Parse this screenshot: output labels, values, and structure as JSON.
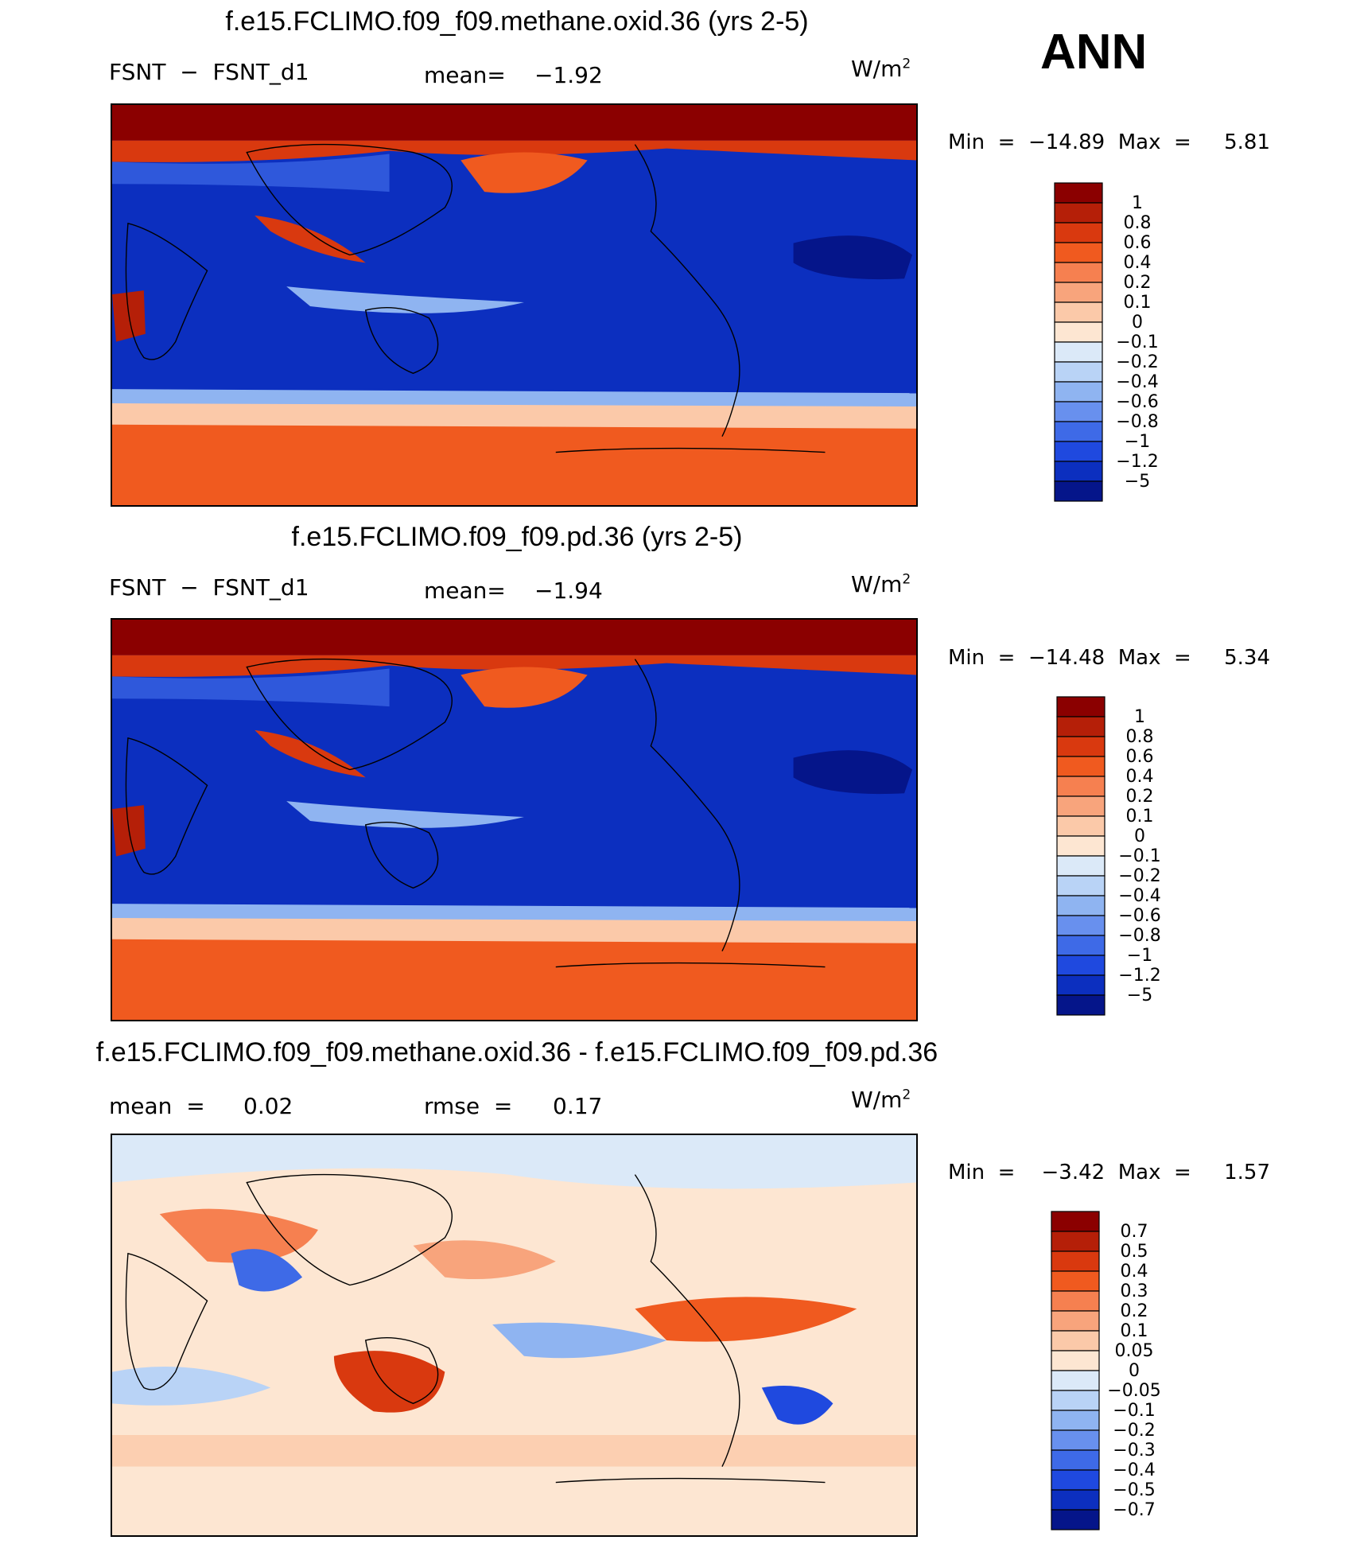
{
  "season": "ANN",
  "units_base": "W/m",
  "units_exp": "2",
  "panels": [
    {
      "id": "test",
      "title": "f.e15.FCLIMO.f09_f09.methane.oxid.36 (yrs 2-5)",
      "variable": "FSNT  −  FSNT_d1",
      "stat1_label": "mean=",
      "stat1_value": "−1.92",
      "min_label": "Min  =  −14.89  Max  =     5.81",
      "colorbar_labels": [
        "1",
        "0.8",
        "0.6",
        "0.4",
        "0.2",
        "0.1",
        "0",
        "−0.1",
        "−0.2",
        "−0.4",
        "−0.6",
        "−0.8",
        "−1",
        "−1.2",
        "−5"
      ]
    },
    {
      "id": "control",
      "title": "f.e15.FCLIMO.f09_f09.pd.36 (yrs 2-5)",
      "variable": "FSNT  −  FSNT_d1",
      "stat1_label": "mean=",
      "stat1_value": "−1.94",
      "min_label": "Min  =  −14.48  Max  =     5.34",
      "colorbar_labels": [
        "1",
        "0.8",
        "0.6",
        "0.4",
        "0.2",
        "0.1",
        "0",
        "−0.1",
        "−0.2",
        "−0.4",
        "−0.6",
        "−0.8",
        "−1",
        "−1.2",
        "−5"
      ]
    },
    {
      "id": "diff",
      "title": "f.e15.FCLIMO.f09_f09.methane.oxid.36 - f.e15.FCLIMO.f09_f09.pd.36",
      "stat1_label": "mean  =",
      "stat1_value": "0.02",
      "stat2_label": "rmse  =",
      "stat2_value": "0.17",
      "min_label": "Min  =    −3.42  Max  =     1.57",
      "colorbar_labels": [
        "0.7",
        "0.5",
        "0.4",
        "0.3",
        "0.2",
        "0.1",
        "0.05",
        "0",
        "−0.05",
        "−0.1",
        "−0.2",
        "−0.3",
        "−0.4",
        "−0.5",
        "−0.7"
      ]
    }
  ],
  "colorbar_colors": [
    "#8b0000",
    "#b51f08",
    "#d9390f",
    "#f05a1f",
    "#f68050",
    "#f8a47c",
    "#fbc9a9",
    "#fde6d2",
    "#dbe9f8",
    "#b9d3f6",
    "#8fb4f1",
    "#6890ee",
    "#3e6ae7",
    "#1f49df",
    "#0c2fbf",
    "#05158a"
  ],
  "chart_data": [
    {
      "type": "heatmap",
      "title": "f.e15.FCLIMO.f09_f09.methane.oxid.36 (yrs 2-5)",
      "variable": "FSNT - FSNT_d1",
      "units": "W/m2",
      "mean": -1.92,
      "min": -14.89,
      "max": 5.81,
      "levels": [
        -5,
        -1.2,
        -1,
        -0.8,
        -0.6,
        -0.4,
        -0.2,
        -0.1,
        0,
        0.1,
        0.2,
        0.4,
        0.6,
        0.8,
        1
      ]
    },
    {
      "type": "heatmap",
      "title": "f.e15.FCLIMO.f09_f09.pd.36 (yrs 2-5)",
      "variable": "FSNT - FSNT_d1",
      "units": "W/m2",
      "mean": -1.94,
      "min": -14.48,
      "max": 5.34,
      "levels": [
        -5,
        -1.2,
        -1,
        -0.8,
        -0.6,
        -0.4,
        -0.2,
        -0.1,
        0,
        0.1,
        0.2,
        0.4,
        0.6,
        0.8,
        1
      ]
    },
    {
      "type": "heatmap",
      "title": "f.e15.FCLIMO.f09_f09.methane.oxid.36 - f.e15.FCLIMO.f09_f09.pd.36",
      "units": "W/m2",
      "mean": 0.02,
      "rmse": 0.17,
      "min": -3.42,
      "max": 1.57,
      "levels": [
        -0.7,
        -0.5,
        -0.4,
        -0.3,
        -0.2,
        -0.1,
        -0.05,
        0,
        0.05,
        0.1,
        0.2,
        0.3,
        0.4,
        0.5,
        0.7
      ]
    }
  ]
}
